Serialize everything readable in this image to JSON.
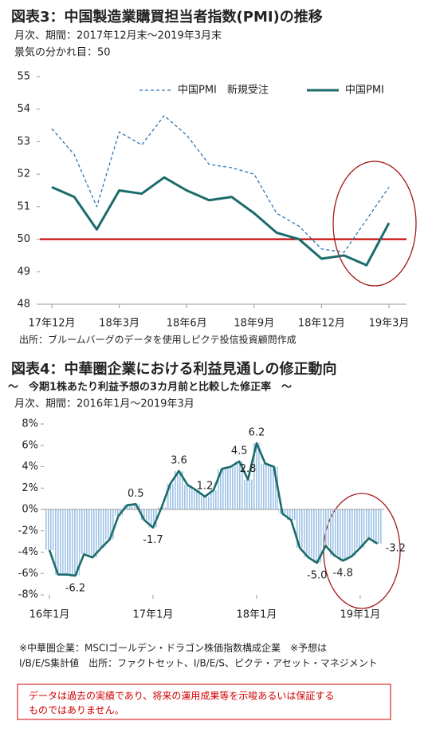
{
  "chart_data": [
    {
      "type": "line",
      "title": "図表3：中国製造業購買担当者指数(PMI)の推移",
      "subtitle": [
        "月次、期間：2017年12月末～2019年3月末",
        "景気の分かれ目：50"
      ],
      "categories": [
        "17年12月",
        null,
        null,
        "18年3月",
        null,
        null,
        "18年6月",
        null,
        null,
        "18年9月",
        null,
        null,
        "18年12月",
        null,
        null,
        "19年3月"
      ],
      "series": [
        {
          "name": "中国PMI　新規受注",
          "color": "#2e75b6",
          "dash": true,
          "values": [
            53.4,
            52.6,
            51.0,
            53.3,
            52.9,
            53.8,
            53.2,
            52.3,
            52.2,
            52.0,
            50.8,
            50.4,
            49.7,
            49.6,
            50.6,
            51.6
          ]
        },
        {
          "name": "中国PMI",
          "color": "#1b6b6b",
          "dash": false,
          "values": [
            51.6,
            51.3,
            50.3,
            51.5,
            51.4,
            51.9,
            51.5,
            51.2,
            51.3,
            50.8,
            50.2,
            50.0,
            49.4,
            49.5,
            49.2,
            50.5
          ]
        }
      ],
      "reference_line": 50,
      "reference_color": "#c00000",
      "ylim": [
        48,
        55
      ],
      "yticks": [
        48,
        49,
        50,
        51,
        52,
        53,
        54,
        55
      ],
      "source": "出所：ブルームバーグのデータを使用しピクテ投信投資顧問作成"
    },
    {
      "type": "area",
      "title": "図表4：中華圏企業における利益見通しの修正動向",
      "subtitle": [
        "～　今期1株あたり利益予想の3カ月前と比較した修正率　～",
        "月次、期間：2016年1月～2019年3月"
      ],
      "categories": [
        "16年1月",
        null,
        null,
        null,
        null,
        null,
        null,
        null,
        null,
        null,
        null,
        null,
        "17年1月",
        null,
        null,
        null,
        null,
        null,
        null,
        null,
        null,
        null,
        null,
        null,
        "18年1月",
        null,
        null,
        null,
        null,
        null,
        null,
        null,
        null,
        null,
        null,
        null,
        "19年1月",
        null,
        null
      ],
      "color": "#1b6b6b",
      "fill_color": "#9dc3e6",
      "values": [
        -3.8,
        -6.1,
        -6.1,
        -6.2,
        -4.2,
        -4.5,
        -3.6,
        -2.8,
        -0.6,
        0.4,
        0.5,
        -1.0,
        -1.7,
        0.2,
        2.4,
        3.6,
        2.3,
        1.8,
        1.2,
        1.8,
        3.8,
        4.0,
        4.5,
        2.8,
        6.2,
        4.3,
        4.0,
        -0.4,
        -1.0,
        -3.6,
        -4.5,
        -5.0,
        -3.4,
        -4.3,
        -4.8,
        -4.4,
        -3.6,
        -2.7,
        -3.2
      ],
      "value_labels": [
        null,
        null,
        null,
        "-6.2",
        null,
        null,
        null,
        null,
        null,
        null,
        "0.5",
        null,
        "-1.7",
        null,
        null,
        "3.6",
        null,
        null,
        "1.2",
        null,
        null,
        null,
        "4.5",
        "2.8",
        "6.2",
        null,
        null,
        null,
        null,
        null,
        null,
        "-5.0",
        null,
        null,
        "-4.8",
        null,
        null,
        null,
        "-3.2"
      ],
      "ylim": [
        -8,
        8
      ],
      "yticks": [
        {
          "value": -8,
          "label": "-8%"
        },
        {
          "value": -6,
          "label": "-6%"
        },
        {
          "value": -4,
          "label": "-4%"
        },
        {
          "value": -2,
          "label": "-2%"
        },
        {
          "value": 0,
          "label": "0%"
        },
        {
          "value": 2,
          "label": "2%"
        },
        {
          "value": 4,
          "label": "4%"
        },
        {
          "value": 6,
          "label": "6%"
        },
        {
          "value": 8,
          "label": "8%"
        }
      ],
      "notes": [
        "※中華圏企業：MSCIゴールデン・ドラゴン株価指数構成企業　※予想は",
        "I/B/E/S集計値　出所：ファクトセット、I/B/E/S、ピクテ・アセット・マネジメント"
      ]
    }
  ],
  "disclaimer": [
    "データは過去の実績であり、将来の運用成果等を示唆あるいは保証する",
    "ものではありません。"
  ]
}
